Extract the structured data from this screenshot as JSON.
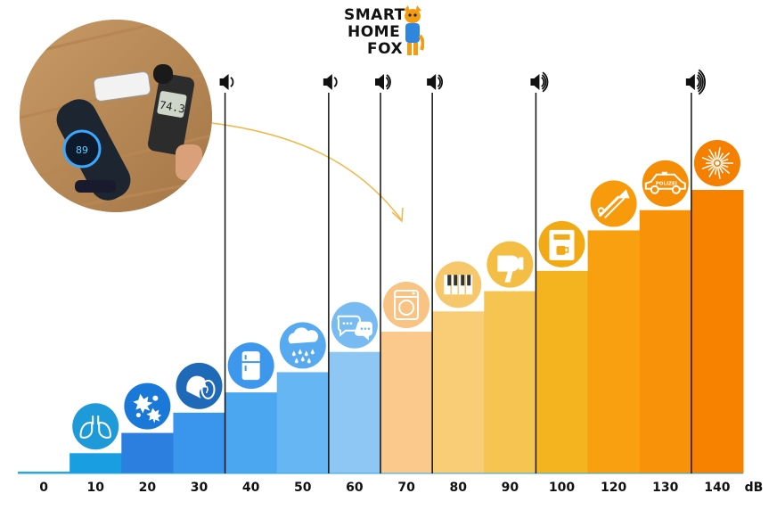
{
  "brand": {
    "line1": "SMART",
    "line2": "HOME",
    "line3": "FOX",
    "mascot_icon": "fox-icon"
  },
  "photo": {
    "display_value": "74.3",
    "vacuum_display": "89",
    "description_icon": "vacuum-and-sound-meter-photo"
  },
  "chart_data": {
    "type": "bar",
    "categories": [
      "0",
      "10",
      "20",
      "30",
      "40",
      "50",
      "60",
      "70",
      "80",
      "90",
      "100",
      "120",
      "130",
      "140"
    ],
    "values": [
      0,
      10,
      20,
      30,
      40,
      50,
      60,
      70,
      80,
      90,
      100,
      120,
      130,
      140
    ],
    "unit_label": "dB",
    "ylim": [
      0,
      140
    ],
    "grid": false,
    "icons": [
      "",
      "lungs-icon",
      "leaves-icon",
      "whisper-icon",
      "refrigerator-icon",
      "rain-icon",
      "chat-icon",
      "washing-machine-icon",
      "piano-icon",
      "hair-dryer-icon",
      "coffee-machine-icon",
      "trombone-icon",
      "police-car-icon",
      "fireworks-icon"
    ],
    "police_text": "POLIZEI",
    "colors": [
      "#29a7de",
      "#1a9ee2",
      "#2d7fdf",
      "#3a95ec",
      "#4aa7f0",
      "#66b6f4",
      "#8ec6f4",
      "#fbc98c",
      "#f9cd75",
      "#f6c451",
      "#f4b41f",
      "#f9a011",
      "#f79209",
      "#f68200"
    ],
    "icon_colors": [
      "",
      "#1e9ad8",
      "#1a78d8",
      "#1e6ab8",
      "#3d97ec",
      "#57aaf0",
      "#78bbf2",
      "#f8c383",
      "#f6c86b",
      "#f4bd43",
      "#f1aa14",
      "#f79a0c",
      "#f68d06",
      "#f47f00"
    ],
    "volume_markers": [
      {
        "level": 1,
        "icon": "speaker-low-icon"
      },
      {
        "level": 1,
        "icon": "speaker-low-icon"
      },
      {
        "level": 2,
        "icon": "speaker-medium-icon"
      },
      {
        "level": 2,
        "icon": "speaker-medium-icon"
      },
      {
        "level": 3,
        "icon": "speaker-high-icon"
      },
      {
        "level": 4,
        "icon": "speaker-max-icon"
      }
    ],
    "divider_after_bar": [
      3,
      5,
      6,
      7,
      9,
      12
    ]
  }
}
